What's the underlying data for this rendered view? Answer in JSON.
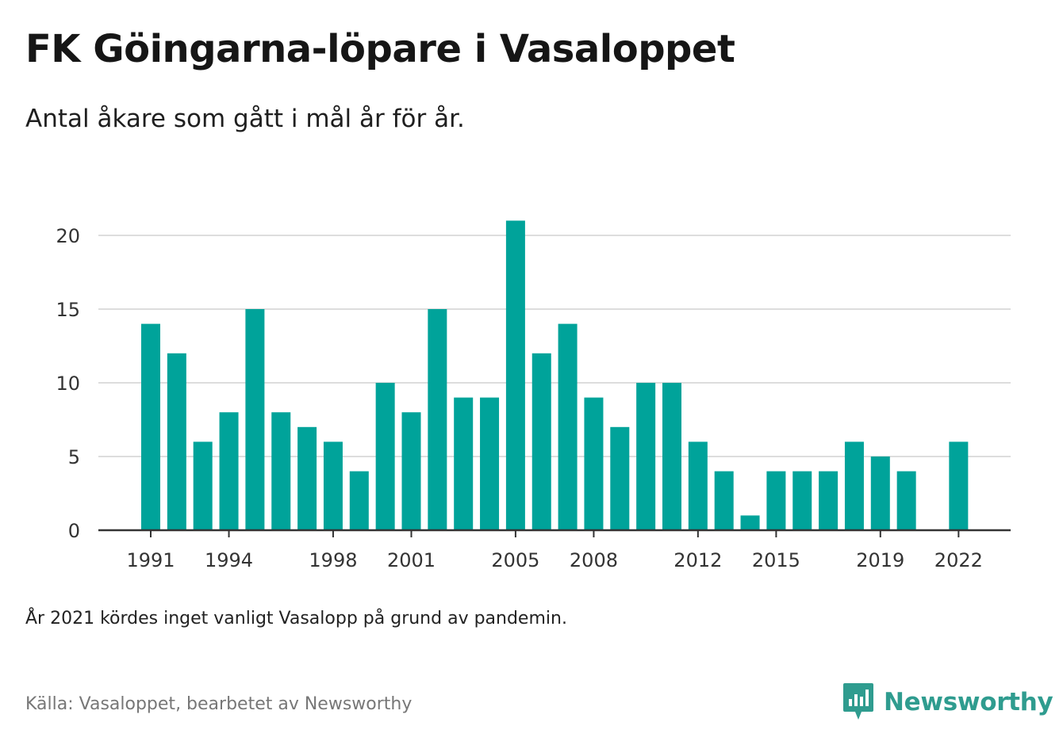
{
  "title": "FK Göingarna-löpare i Vasaloppet",
  "subtitle": "Antal åkare som gått i mål år för år.",
  "note": "År 2021 kördes inget vanligt Vasalopp på grund av pandemin.",
  "source": "Källa: Vasaloppet, bearbetet av Newsworthy",
  "logo_text": "Newsworthy",
  "colors": {
    "bar": "#00a39a",
    "grid": "#dddddd",
    "axis": "#333333",
    "brand": "#2f9c8f"
  },
  "chart_data": {
    "type": "bar",
    "categories": [
      1991,
      1992,
      1993,
      1994,
      1995,
      1996,
      1997,
      1998,
      1999,
      2000,
      2001,
      2002,
      2003,
      2004,
      2005,
      2006,
      2007,
      2008,
      2009,
      2010,
      2011,
      2012,
      2013,
      2014,
      2015,
      2016,
      2017,
      2018,
      2019,
      2020,
      2021,
      2022
    ],
    "values": [
      14,
      12,
      6,
      8,
      15,
      8,
      7,
      6,
      4,
      10,
      8,
      15,
      9,
      9,
      21,
      12,
      14,
      9,
      7,
      10,
      10,
      6,
      4,
      1,
      4,
      4,
      4,
      6,
      5,
      4,
      null,
      6
    ],
    "x_tick_labels": [
      "1991",
      "1994",
      "1998",
      "2001",
      "2005",
      "2008",
      "2012",
      "2015",
      "2019",
      "2022"
    ],
    "y_ticks": [
      0,
      5,
      10,
      15,
      20
    ],
    "ylim": [
      0,
      21
    ],
    "xlabel": "",
    "ylabel": "",
    "grid": true,
    "legend": "none"
  }
}
